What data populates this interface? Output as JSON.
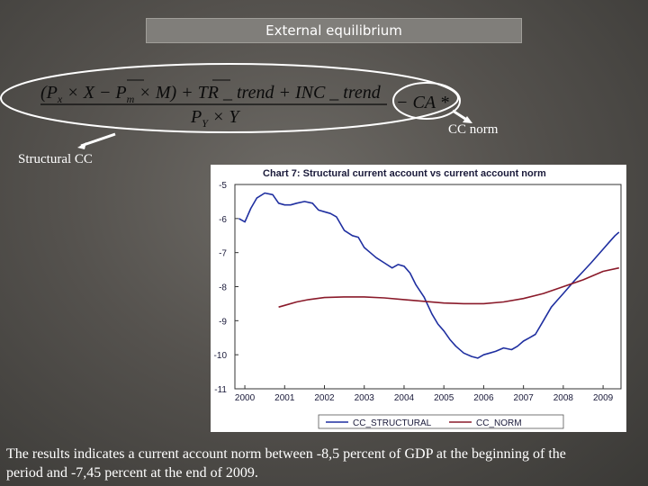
{
  "slide": {
    "title": "External equilibrium",
    "labels": {
      "structural_cc": "Structural CC",
      "cc_norm": "CC norm"
    },
    "formula": {
      "numerator": "(P",
      "sub_x": "x",
      "times1": " × ",
      "xbar": "X",
      "minus": " − P",
      "sub_m": "m",
      "times2": " × ",
      "mbar": "M",
      "rest": ") + TR _ trend + INC _ trend",
      "denominator_p": "P",
      "sub_y": "Y",
      "times3": " × ",
      "ybar": "Y",
      "right": "− CA *"
    },
    "footer": "The results indicates a current account norm between -8,5 percent of GDP at the beginning of the period and -7,45 percent at the end of 2009."
  },
  "colors": {
    "series_structural": "#1f2fa0",
    "series_norm": "#8a1a2a"
  },
  "chart_data": {
    "type": "line",
    "title": "Chart 7: Structural current account vs current account norm",
    "ylim": [
      -11,
      -5
    ],
    "xlim": [
      1999.75,
      2009.45
    ],
    "y_ticks": [
      -5,
      -6,
      -7,
      -8,
      -9,
      -10,
      -11
    ],
    "x_ticks": [
      2000,
      2001,
      2002,
      2003,
      2004,
      2005,
      2006,
      2007,
      2008,
      2009
    ],
    "grid": false,
    "legend_position": "bottom",
    "series": [
      {
        "name": "CC_STRUCTURAL",
        "x": [
          1999.85,
          2000.0,
          2000.15,
          2000.3,
          2000.5,
          2000.7,
          2000.85,
          2001.0,
          2001.15,
          2001.3,
          2001.5,
          2001.7,
          2001.85,
          2002.0,
          2002.15,
          2002.3,
          2002.5,
          2002.7,
          2002.85,
          2003.0,
          2003.15,
          2003.3,
          2003.5,
          2003.7,
          2003.85,
          2004.0,
          2004.15,
          2004.3,
          2004.5,
          2004.7,
          2004.85,
          2005.0,
          2005.15,
          2005.3,
          2005.5,
          2005.7,
          2005.85,
          2006.0,
          2006.15,
          2006.3,
          2006.5,
          2006.7,
          2006.85,
          2007.0,
          2007.15,
          2007.3,
          2007.5,
          2007.7,
          2007.85,
          2008.0,
          2008.15,
          2008.3,
          2008.5,
          2008.7,
          2008.85,
          2009.0,
          2009.15,
          2009.3,
          2009.4
        ],
        "y": [
          -6.0,
          -6.1,
          -5.7,
          -5.4,
          -5.25,
          -5.3,
          -5.55,
          -5.6,
          -5.6,
          -5.55,
          -5.5,
          -5.55,
          -5.75,
          -5.8,
          -5.85,
          -5.95,
          -6.35,
          -6.5,
          -6.55,
          -6.85,
          -7.0,
          -7.15,
          -7.3,
          -7.45,
          -7.35,
          -7.4,
          -7.6,
          -7.95,
          -8.3,
          -8.8,
          -9.1,
          -9.3,
          -9.55,
          -9.75,
          -9.95,
          -10.05,
          -10.1,
          -10.0,
          -9.95,
          -9.9,
          -9.8,
          -9.85,
          -9.75,
          -9.6,
          -9.5,
          -9.4,
          -9.0,
          -8.6,
          -8.4,
          -8.2,
          -8.0,
          -7.8,
          -7.55,
          -7.3,
          -7.1,
          -6.9,
          -6.7,
          -6.5,
          -6.4
        ]
      },
      {
        "name": "CC_NORM",
        "x": [
          2000.85,
          2001.0,
          2001.3,
          2001.6,
          2002.0,
          2002.5,
          2003.0,
          2003.5,
          2004.0,
          2004.5,
          2005.0,
          2005.5,
          2006.0,
          2006.5,
          2007.0,
          2007.5,
          2008.0,
          2008.5,
          2009.0,
          2009.4
        ],
        "y": [
          -8.6,
          -8.55,
          -8.45,
          -8.38,
          -8.32,
          -8.3,
          -8.3,
          -8.33,
          -8.38,
          -8.43,
          -8.48,
          -8.5,
          -8.5,
          -8.45,
          -8.35,
          -8.2,
          -8.0,
          -7.8,
          -7.55,
          -7.45
        ]
      }
    ]
  }
}
